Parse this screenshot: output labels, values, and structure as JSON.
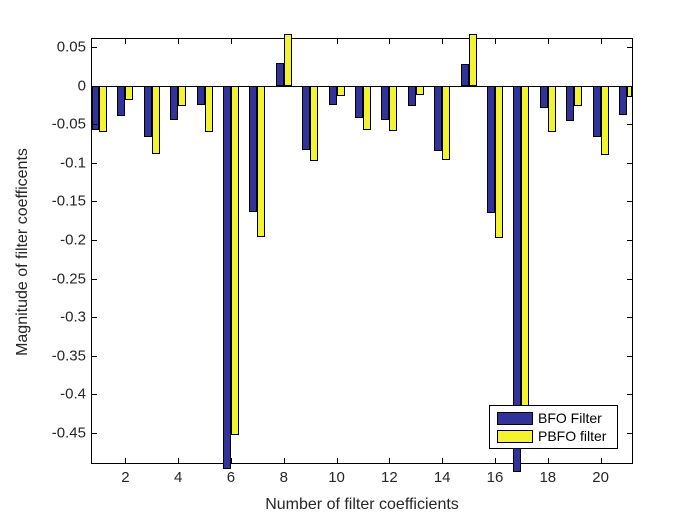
{
  "chart_data": {
    "type": "bar",
    "title": "",
    "xlabel": "Number of filter coefficients",
    "ylabel": "Magnitude of filter coefficents",
    "categories": [
      1,
      2,
      3,
      4,
      5,
      6,
      7,
      8,
      9,
      10,
      11,
      12,
      13,
      14,
      15,
      16,
      17,
      18,
      19,
      20,
      21
    ],
    "series": [
      {
        "name": "BFO Filter",
        "color": "#32329B",
        "values": [
          -0.057,
          -0.039,
          -0.066,
          -0.044,
          -0.025,
          -0.496,
          -0.163,
          0.03,
          -0.083,
          -0.024,
          -0.042,
          -0.044,
          -0.026,
          -0.084,
          0.028,
          -0.164,
          -0.5,
          -0.028,
          -0.046,
          -0.066,
          -0.037
        ]
      },
      {
        "name": "PBFO filter",
        "color": "#F3F32F",
        "values": [
          -0.059,
          -0.018,
          -0.088,
          -0.026,
          -0.059,
          -0.453,
          -0.196,
          0.067,
          -0.097,
          -0.013,
          -0.057,
          -0.058,
          -0.012,
          -0.096,
          0.067,
          -0.197,
          -0.46,
          -0.059,
          -0.026,
          -0.089,
          -0.014
        ]
      }
    ],
    "bar_edge_color": "#000000",
    "xticks": [
      2,
      4,
      6,
      8,
      10,
      12,
      14,
      16,
      18,
      20
    ],
    "xtick_labels": [
      "2",
      "4",
      "6",
      "8",
      "10",
      "12",
      "14",
      "16",
      "18",
      "20"
    ],
    "yticks": [
      0.05,
      0,
      -0.05,
      -0.1,
      -0.15,
      -0.2,
      -0.25,
      -0.3,
      -0.35,
      -0.4,
      -0.45
    ],
    "ytick_labels": [
      "0.05",
      "0",
      "-0.05",
      "-0.1",
      "-0.15",
      "-0.2",
      "-0.25",
      "-0.3",
      "-0.35",
      "-0.4",
      "-0.45"
    ],
    "xlim": [
      0.736,
      21.19
    ],
    "ylim": [
      -0.489,
      0.0606
    ],
    "grid": false,
    "legend_position": "bottom-right",
    "legend": [
      "BFO Filter",
      "PBFO filter"
    ]
  }
}
